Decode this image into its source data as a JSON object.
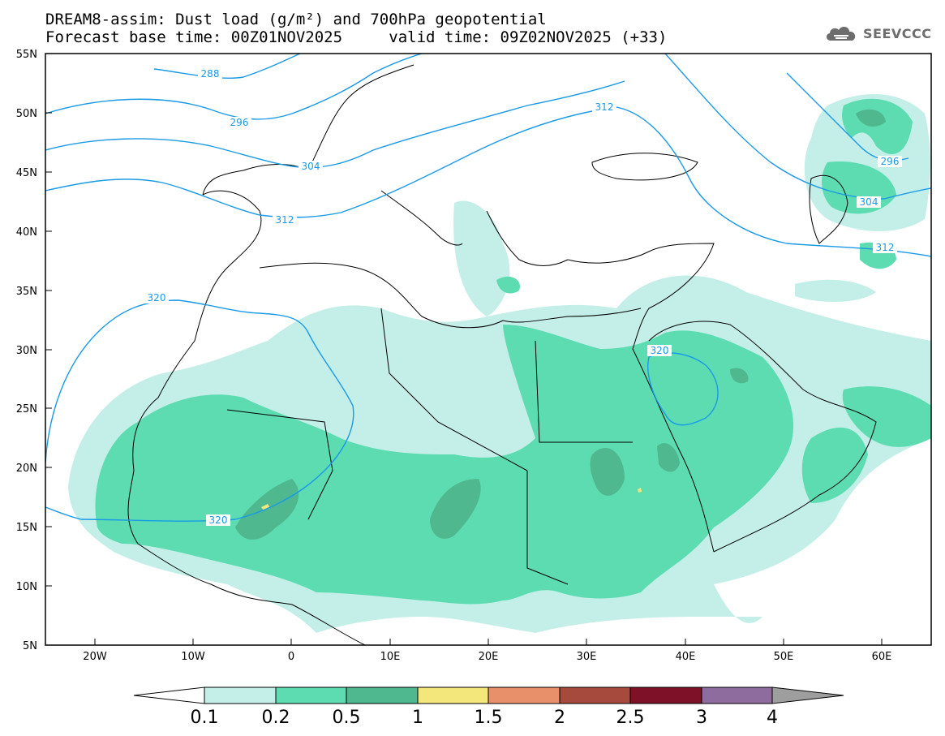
{
  "title_line1": "DREAM8-assim: Dust load (g/m²) and 700hPa geopotential",
  "title_base": "Forecast base time: 00Z01NOV2025",
  "title_valid": "valid time: 09Z02NOV2025 (+33)",
  "logo_text": "SEEVCCC",
  "lat_labels": [
    "55N",
    "50N",
    "45N",
    "40N",
    "35N",
    "30N",
    "25N",
    "20N",
    "15N",
    "10N",
    "5N"
  ],
  "lon_labels": [
    "20W",
    "10W",
    "0",
    "10E",
    "20E",
    "30E",
    "40E",
    "50E",
    "60E"
  ],
  "contour_labels": [
    "288",
    "296",
    "304",
    "312",
    "320",
    "320",
    "320",
    "296",
    "304",
    "312",
    "312"
  ],
  "colorbar": {
    "ticks": [
      "0.1",
      "0.2",
      "0.5",
      "1",
      "1.5",
      "2",
      "2.5",
      "3",
      "4"
    ],
    "colors": [
      "#ffffff",
      "#c4efe8",
      "#5ddcb2",
      "#4fb88f",
      "#f3e67a",
      "#e8906a",
      "#a74a3e",
      "#7e1028",
      "#8e6d9e",
      "#9e9e9e"
    ]
  },
  "colors": {
    "contour": "#1a9ae6",
    "land_edge": "#000000"
  }
}
